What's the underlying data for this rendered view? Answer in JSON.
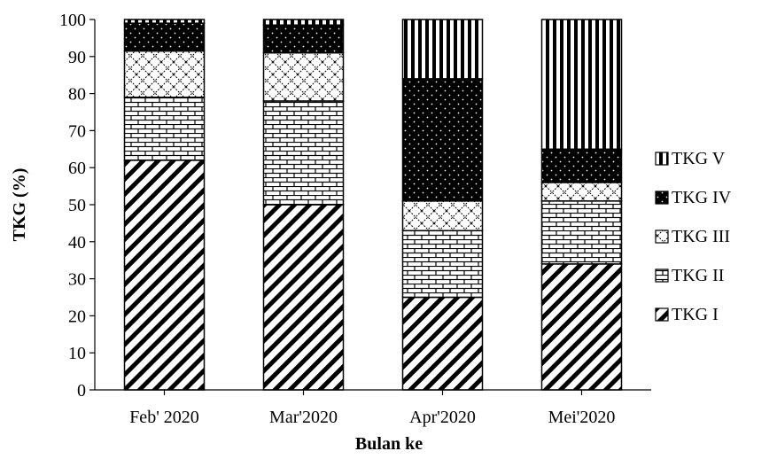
{
  "chart_data": {
    "type": "bar",
    "stacked": true,
    "xlabel": "Bulan ke",
    "ylabel": "TKG (%)",
    "ylim": [
      0,
      100
    ],
    "yticks": [
      0,
      10,
      20,
      30,
      40,
      50,
      60,
      70,
      80,
      90,
      100
    ],
    "grid": false,
    "legend_position": "right",
    "categories": [
      "Feb' 2020",
      "Mar'2020",
      "Apr'2020",
      "Mei'2020"
    ],
    "series": [
      {
        "name": "TKG I",
        "pattern": "diagonal-stripes",
        "values": [
          62,
          50,
          25,
          34
        ]
      },
      {
        "name": "TKG II",
        "pattern": "brick",
        "values": [
          17,
          28,
          18,
          17
        ]
      },
      {
        "name": "TKG III",
        "pattern": "diamond-lattice",
        "values": [
          12.5,
          13,
          8,
          5
        ]
      },
      {
        "name": "TKG IV",
        "pattern": "dotted-black",
        "values": [
          7.5,
          7.5,
          33,
          9
        ]
      },
      {
        "name": "TKG V",
        "pattern": "vertical-stripes",
        "values": [
          1,
          1.5,
          16,
          35
        ]
      }
    ],
    "legend_order": [
      "TKG V",
      "TKG IV",
      "TKG III",
      "TKG II",
      "TKG I"
    ]
  }
}
